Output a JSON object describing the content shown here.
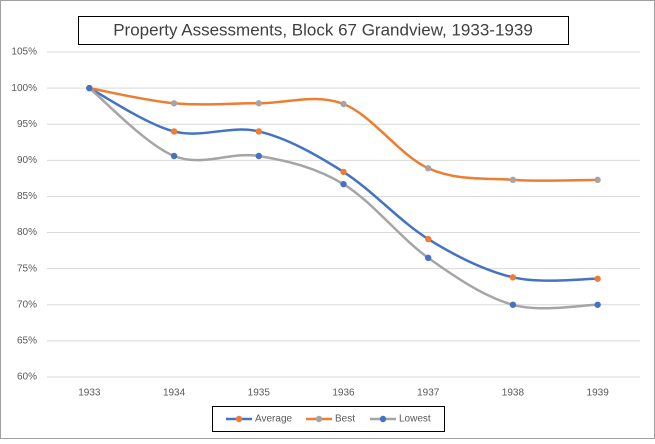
{
  "chart_data": {
    "type": "line",
    "title": "Property Assessments,  Block 67 Grandview, 1933-1939",
    "categories": [
      "1933",
      "1934",
      "1935",
      "1936",
      "1937",
      "1938",
      "1939"
    ],
    "series": [
      {
        "name": "Average",
        "color": "#4472c4",
        "marker_color": "#ed7d31",
        "values": [
          100,
          94,
          94,
          88.4,
          79.1,
          73.8,
          73.6
        ]
      },
      {
        "name": "Best",
        "color": "#ed7d31",
        "marker_color": "#a5a5a5",
        "values": [
          100,
          97.9,
          97.9,
          97.8,
          88.9,
          87.3,
          87.3
        ]
      },
      {
        "name": "Lowest",
        "color": "#a5a5a5",
        "marker_color": "#4472c4",
        "values": [
          100,
          90.6,
          90.6,
          86.7,
          76.5,
          70,
          70
        ]
      }
    ],
    "ylim": [
      60,
      105
    ],
    "yticks": [
      {
        "value": 60,
        "label": "60%"
      },
      {
        "value": 65,
        "label": "65%"
      },
      {
        "value": 70,
        "label": "70%"
      },
      {
        "value": 75,
        "label": "75%"
      },
      {
        "value": 80,
        "label": "80%"
      },
      {
        "value": 85,
        "label": "85%"
      },
      {
        "value": 90,
        "label": "90%"
      },
      {
        "value": 95,
        "label": "95%"
      },
      {
        "value": 100,
        "label": "100%"
      },
      {
        "value": 105,
        "label": "105%"
      }
    ],
    "grid": true,
    "smooth": true,
    "legend": "bottom"
  }
}
